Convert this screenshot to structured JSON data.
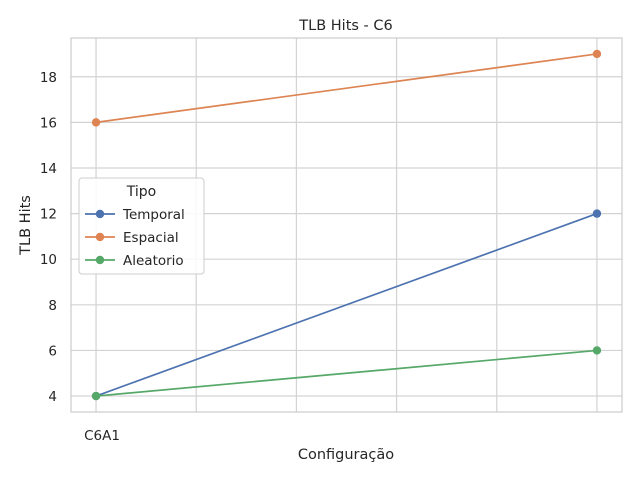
{
  "chart_data": {
    "type": "line",
    "title": "TLB Hits - C6",
    "xlabel": "Configuração",
    "ylabel": "TLB Hits",
    "categories": [
      "C6A1",
      "",
      "",
      "",
      "",
      ""
    ],
    "x_tick_labels": [
      "C6A1"
    ],
    "ylim": [
      3.3,
      19.7
    ],
    "yticks": [
      4,
      6,
      8,
      10,
      12,
      14,
      16,
      18
    ],
    "grid": true,
    "legend_title": "Tipo",
    "legend_position": "center-left",
    "series": [
      {
        "name": "Temporal",
        "color": "#4c72b0",
        "points": [
          {
            "x": 0,
            "y": 4
          },
          {
            "x": 5,
            "y": 12
          }
        ]
      },
      {
        "name": "Espacial",
        "color": "#dd8452",
        "points": [
          {
            "x": 0,
            "y": 16
          },
          {
            "x": 5,
            "y": 19
          }
        ]
      },
      {
        "name": "Aleatorio",
        "color": "#55a868",
        "points": [
          {
            "x": 0,
            "y": 4
          },
          {
            "x": 5,
            "y": 6
          }
        ]
      }
    ]
  }
}
